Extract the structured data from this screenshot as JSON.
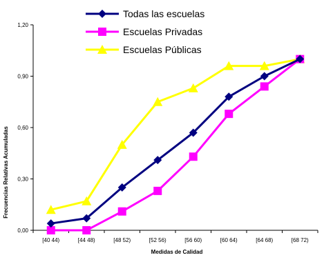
{
  "chart_data": {
    "type": "line",
    "categories": [
      "[40  44)",
      "[44  48)",
      "[48  52)",
      "[52  56)",
      "[56  60)",
      "[60  64)",
      "[64  68)",
      "[68  72)"
    ],
    "xlabel": "Medidas de Calidad",
    "ylabel": "Frecuencias Relativas Acumuladas",
    "ylim": [
      0,
      1.2
    ],
    "yticks": [
      "0,00",
      "0,30",
      "0,60",
      "0,90",
      "1,20"
    ],
    "grid": false,
    "legend_position": "top-center",
    "series": [
      {
        "name": "Todas las escuelas",
        "color": "#000080",
        "marker": "diamond",
        "values": [
          0.04,
          0.07,
          0.25,
          0.41,
          0.57,
          0.78,
          0.9,
          1.0
        ]
      },
      {
        "name": "Escuelas Privadas",
        "color": "#FF00FF",
        "marker": "square",
        "values": [
          0.0,
          0.0,
          0.11,
          0.23,
          0.43,
          0.68,
          0.84,
          1.0
        ]
      },
      {
        "name": "Escuelas Públicas",
        "color": "#FFFF00",
        "marker": "triangle",
        "values": [
          0.12,
          0.17,
          0.5,
          0.75,
          0.83,
          0.96,
          0.96,
          1.0
        ]
      }
    ]
  }
}
